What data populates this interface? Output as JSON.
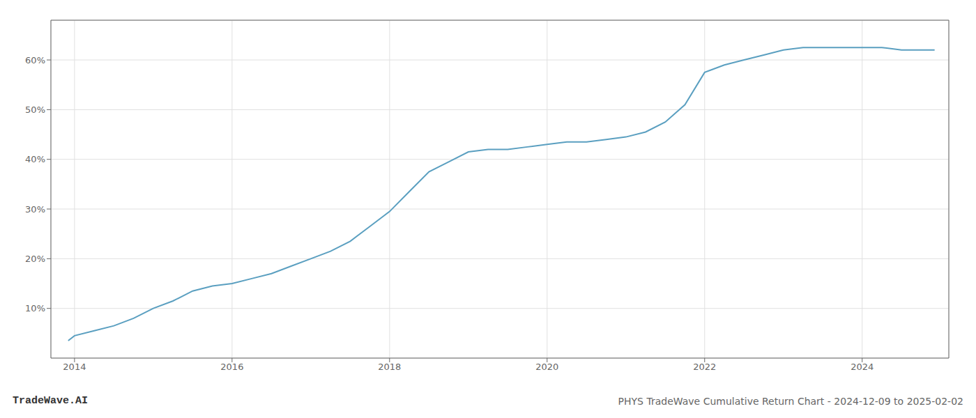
{
  "chart_data": {
    "type": "line",
    "title": "PHYS TradeWave Cumulative Return Chart - 2024-12-09 to 2025-02-02",
    "annotations": [
      "TradeWave.AI"
    ],
    "color": "#5a9fc0",
    "grid": true,
    "x": [
      2013.92,
      2014.0,
      2014.25,
      2014.5,
      2014.75,
      2015.0,
      2015.25,
      2015.5,
      2015.75,
      2016.0,
      2016.25,
      2016.5,
      2016.75,
      2017.0,
      2017.25,
      2017.5,
      2017.75,
      2018.0,
      2018.25,
      2018.5,
      2018.75,
      2019.0,
      2019.25,
      2019.5,
      2019.75,
      2020.0,
      2020.25,
      2020.5,
      2020.75,
      2021.0,
      2021.25,
      2021.5,
      2021.75,
      2022.0,
      2022.25,
      2022.5,
      2022.75,
      2023.0,
      2023.25,
      2023.5,
      2023.75,
      2024.0,
      2024.25,
      2024.5,
      2024.75,
      2024.92
    ],
    "values": [
      3.5,
      4.5,
      5.5,
      6.5,
      8.0,
      10.0,
      11.5,
      13.5,
      14.5,
      15.0,
      16.0,
      17.0,
      18.5,
      20.0,
      21.5,
      23.5,
      26.5,
      29.5,
      33.5,
      37.5,
      39.5,
      41.5,
      42.0,
      42.0,
      42.5,
      43.0,
      43.5,
      43.5,
      44.0,
      44.5,
      45.5,
      47.5,
      51.0,
      57.5,
      59.0,
      60.0,
      61.0,
      62.0,
      62.5,
      62.5,
      62.5,
      62.5,
      62.5,
      62.0,
      62.0,
      62.0
    ],
    "xlim": [
      2013.7,
      2025.1
    ],
    "ylim": [
      0,
      68
    ],
    "xticks": [
      2014,
      2016,
      2018,
      2020,
      2022,
      2024
    ],
    "yticks": [
      {
        "value": 10,
        "label": "10%"
      },
      {
        "value": 20,
        "label": "20%"
      },
      {
        "value": 30,
        "label": "30%"
      },
      {
        "value": 40,
        "label": "40%"
      },
      {
        "value": 50,
        "label": "50%"
      },
      {
        "value": 60,
        "label": "60%"
      }
    ]
  }
}
